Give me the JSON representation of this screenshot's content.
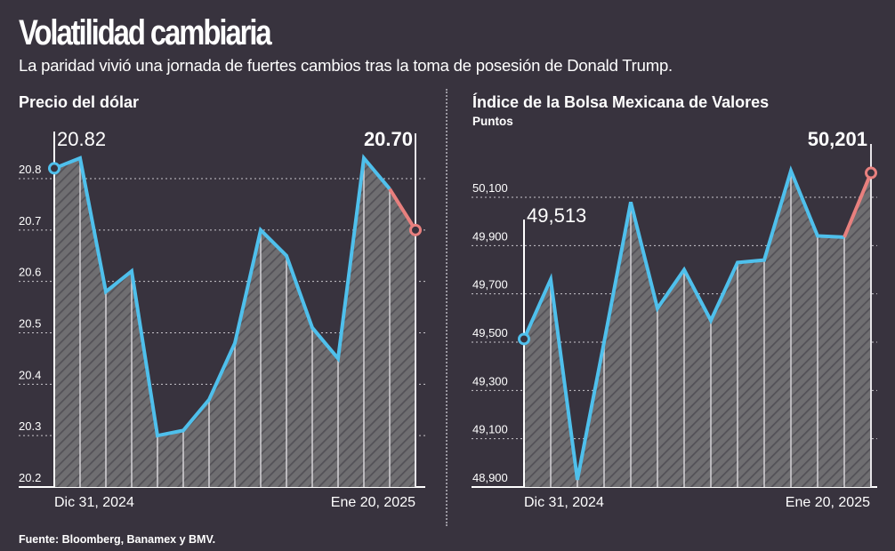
{
  "header": {
    "title": "Volatilidad cambiaria",
    "subtitle": "La paridad vivió una jornada de fuertes cambios tras la toma de posesión de Donald Trump."
  },
  "footer": {
    "source": "Fuente: Bloomberg, Banamex y BMV."
  },
  "colors": {
    "background": "#38333e",
    "line": "#4fc0ec",
    "last_segment": "#e8807e",
    "area": "#6c6b6e"
  },
  "chart_data": [
    {
      "type": "area",
      "title": "Precio del dólar",
      "subtitle": "",
      "xlabel": "",
      "ylabel": "",
      "x_tick_labels": [
        "Dic 31, 2024",
        "Ene 20, 2025"
      ],
      "y_ticks": [
        20.2,
        20.3,
        20.4,
        20.5,
        20.6,
        20.7,
        20.8
      ],
      "y_tick_labels": [
        "20.2",
        "20.3",
        "20.4",
        "20.5",
        "20.6",
        "20.7",
        "20.8"
      ],
      "ylim": [
        20.2,
        20.85
      ],
      "grid": true,
      "values": [
        20.82,
        20.84,
        20.58,
        20.62,
        20.3,
        20.31,
        20.37,
        20.48,
        20.7,
        20.65,
        20.51,
        20.45,
        20.84,
        20.78,
        20.7
      ],
      "start_label": "20.82",
      "end_label": "20.70",
      "highlight_last_segment": true
    },
    {
      "type": "area",
      "title": "Índice de la Bolsa Mexicana de Valores",
      "subtitle": "Puntos",
      "xlabel": "",
      "ylabel": "Puntos",
      "x_tick_labels": [
        "Dic 31, 2024",
        "Ene 20, 2025"
      ],
      "y_ticks": [
        48900,
        49100,
        49300,
        49500,
        49700,
        49900,
        50100
      ],
      "y_tick_labels": [
        "48,900",
        "49,100",
        "49,300",
        "49,500",
        "49,700",
        "49,900",
        "50,100"
      ],
      "ylim": [
        48900,
        50250
      ],
      "grid": true,
      "values": [
        49513,
        49760,
        48930,
        49500,
        50080,
        49640,
        49800,
        49590,
        49830,
        49840,
        50210,
        49940,
        49935,
        50201
      ],
      "start_label": "49,513",
      "end_label": "50,201",
      "highlight_last_segment": true
    }
  ]
}
